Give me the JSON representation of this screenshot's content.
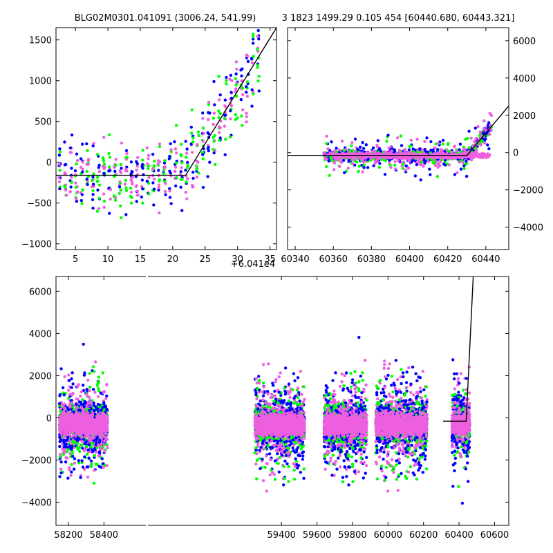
{
  "figure": {
    "title_left": "BLG02M0301.041091 (3006.24, 541.99)",
    "title_right": "3 1823 1499.29 0.105 454 [60440.680, 60443.321]",
    "colors": {
      "series_a": "#0000ff",
      "series_b": "#00ff00",
      "series_c": "#ee5fe0",
      "model": "#000000",
      "frame": "#000000"
    }
  },
  "chart_data": [
    {
      "id": "zoom-panel",
      "type": "scatter",
      "x_offset_label": "+6.041e4",
      "xlim": [
        2,
        36
      ],
      "ylim": [
        -1070,
        1650
      ],
      "xticks": [
        5,
        10,
        15,
        20,
        25,
        30,
        35
      ],
      "xtick_labels": [
        "5",
        "10",
        "15",
        "20",
        "25",
        "30",
        "35"
      ],
      "yticks": [
        -1000,
        -500,
        0,
        500,
        1000,
        1500
      ],
      "ytick_labels": [
        "−1000",
        "−500",
        "0",
        "500",
        "1000",
        "1500"
      ],
      "yaxis_side": "left",
      "series": [
        {
          "name": "blue",
          "color": "#0000ff"
        },
        {
          "name": "green",
          "color": "#00ff00"
        },
        {
          "name": "magenta",
          "color": "#ee5fe0"
        }
      ],
      "model_line": {
        "x": [
          2,
          22,
          36
        ],
        "y": [
          -160,
          -160,
          1650
        ]
      }
    },
    {
      "id": "mid-panel",
      "type": "scatter",
      "xlim": [
        60336,
        60452
      ],
      "ylim": [
        -5200,
        6700
      ],
      "xticks": [
        60340,
        60360,
        60380,
        60400,
        60420,
        60440
      ],
      "xtick_labels": [
        "60340",
        "60360",
        "60380",
        "60400",
        "60420",
        "60440"
      ],
      "yticks": [
        -4000,
        -2000,
        0,
        2000,
        4000,
        6000
      ],
      "ytick_labels": [
        "−4000",
        "−2000",
        "0",
        "2000",
        "4000",
        "6000"
      ],
      "yaxis_side": "right",
      "series": [
        {
          "name": "blue",
          "color": "#0000ff"
        },
        {
          "name": "green",
          "color": "#00ff00"
        },
        {
          "name": "magenta",
          "color": "#ee5fe0"
        }
      ],
      "model_line": {
        "x": [
          60336,
          60430,
          60452
        ],
        "y": [
          -160,
          -160,
          2500
        ]
      }
    },
    {
      "id": "full-panel",
      "type": "scatter",
      "xlim": [
        58130,
        60680
      ],
      "ylim": [
        -5100,
        6700
      ],
      "xticks": [
        58200,
        58400,
        59400,
        59600,
        59800,
        60000,
        60200,
        60400,
        60600
      ],
      "xtick_labels": [
        "58200",
        "58400",
        "59400",
        "59600",
        "59800",
        "60000",
        "60200",
        "60400",
        "60600"
      ],
      "yticks": [
        -4000,
        -2000,
        0,
        2000,
        4000,
        6000
      ],
      "ytick_labels": [
        "−4000",
        "−2000",
        "0",
        "2000",
        "4000",
        "6000"
      ],
      "yaxis_side": "left",
      "series": [
        {
          "name": "blue",
          "color": "#0000ff"
        },
        {
          "name": "green",
          "color": "#00ff00"
        },
        {
          "name": "magenta",
          "color": "#ee5fe0"
        }
      ],
      "seasons": [
        [
          58150,
          58420
        ],
        [
          59250,
          59530
        ],
        [
          59640,
          59880
        ],
        [
          59930,
          60220
        ],
        [
          60360,
          60460
        ]
      ],
      "model_line": {
        "x": [
          60310,
          60440,
          60480
        ],
        "y": [
          -160,
          -160,
          6700
        ]
      }
    }
  ]
}
